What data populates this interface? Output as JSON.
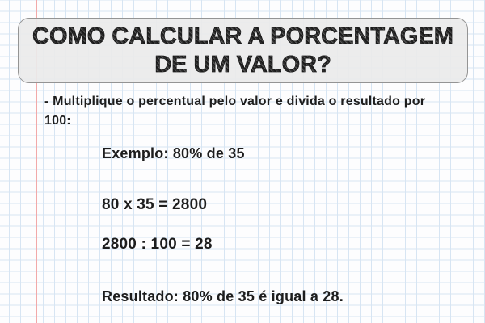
{
  "title": {
    "lines": [
      "COMO CALCULAR A PORCENTAGEM",
      "DE UM VALOR?"
    ]
  },
  "body": {
    "instruction_lines": [
      "- Multiplique o percentual pelo valor e divida o resultado por",
      "100:"
    ],
    "example": "Exemplo: 80% de 35",
    "step1": "80 x 35 = 2800",
    "step2": "2800 : 100 = 28",
    "result": "Resultado: 80% de 35 é igual a 28."
  },
  "colors": {
    "paper": "#fdfdfe",
    "grid_line": "#d7e5f3",
    "margin_line": "#f2a9a9",
    "title_box_fill": "rgba(234,234,234,0.92)",
    "title_box_border": "#949494",
    "title_text": "#2b2b2b",
    "body_text": "#1d1d1d"
  }
}
